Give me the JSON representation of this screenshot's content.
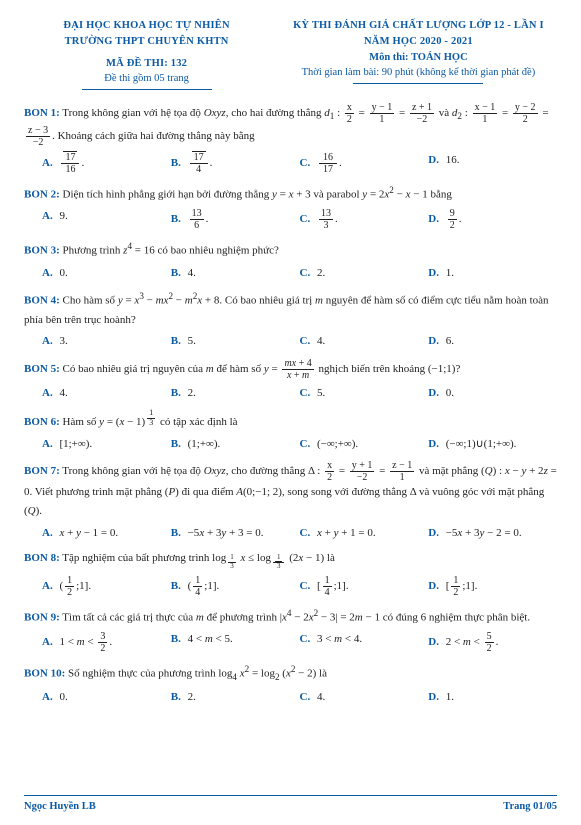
{
  "header": {
    "left_line1": "ĐẠI HỌC KHOA HỌC TỰ NHIÊN",
    "left_line2": "TRƯỜNG THPT CHUYÊN KHTN",
    "left_code": "MÃ ĐỀ THI: 132",
    "left_sub": "Đề thi gồm 05 trang",
    "right_line1": "KỲ THI ĐÁNH GIÁ CHẤT LƯỢNG LỚP 12 - LẦN I",
    "right_line2": "NĂM HỌC 2020 - 2021",
    "right_subject": "Môn thi: TOÁN HỌC",
    "right_time": "Thời gian làm bài: 90 phút (không kể thời gian phát đề)"
  },
  "questions": [
    {
      "label": "BON 1:",
      "text_before": " Trong không gian với hệ tọa độ ",
      "ital1": "Oxyz",
      "text_mid": ", cho hai đường thẳng ",
      "eq1_html": "<span class='ital'>d</span><sub>1</sub> : <span class='frac'><span class='num'>x</span><span class='den'>2</span></span> = <span class='frac'><span class='num'>y − 1</span><span class='den'>1</span></span> = <span class='frac'><span class='num'>z + 1</span><span class='den'>−2</span></span>",
      "text_after1": " và ",
      "eq2_html": "<span class='ital'>d</span><sub>2</sub> : <span class='frac'><span class='num'>x − 1</span><span class='den'>1</span></span> = <span class='frac'><span class='num'>y − 2</span><span class='den'>2</span></span> = <span class='frac'><span class='num'>z − 3</span><span class='den'>−2</span></span>",
      "text_after2": ". Khoảng cách giữa hai đường thẳng này bằng",
      "options": [
        "<span class='frac'><span class='num'><span class='sqrt'>17</span></span><span class='den'>16</span></span>.",
        "<span class='frac'><span class='num'><span class='sqrt'>17</span></span><span class='den'>4</span></span>.",
        "<span class='frac'><span class='num'>16</span><span class='den'><span class='sqrt'>17</span></span></span>.",
        "16."
      ]
    },
    {
      "label": "BON 2:",
      "text": " Diện tích hình phẳng giới hạn bởi đường thẳng <span class='ital'>y</span> = <span class='ital'>x</span> + 3 và parabol <span class='ital'>y</span> = 2<span class='ital'>x</span><sup>2</sup> − <span class='ital'>x</span> − 1 bằng",
      "options": [
        "9.",
        "<span class='frac'><span class='num'>13</span><span class='den'>6</span></span>.",
        "<span class='frac'><span class='num'>13</span><span class='den'>3</span></span>.",
        "<span class='frac'><span class='num'>9</span><span class='den'>2</span></span>."
      ]
    },
    {
      "label": "BON 3:",
      "text": " Phương trình <span class='ital'>z</span><sup>4</sup> = 16 có bao nhiêu nghiệm phức?",
      "options": [
        "0.",
        "4.",
        "2.",
        "1."
      ]
    },
    {
      "label": "BON 4:",
      "text": " Cho hàm số <span class='ital'>y</span> = <span class='ital'>x</span><sup>3</sup> − <span class='ital'>mx</span><sup>2</sup> − <span class='ital'>m</span><sup>2</sup><span class='ital'>x</span> + 8. Có bao nhiêu giá trị <span class='ital'>m</span> nguyên để hàm số có điểm cực tiểu nằm hoàn toàn phía bên trên trục hoành?",
      "options": [
        "3.",
        "5.",
        "4.",
        "6."
      ]
    },
    {
      "label": "BON 5:",
      "text": " Có bao nhiêu giá trị nguyên của <span class='ital'>m</span> để hàm số <span class='ital'>y</span> = <span class='frac'><span class='num'><span class='ital'>mx</span> + 4</span><span class='den'><span class='ital'>x</span> + <span class='ital'>m</span></span></span> nghịch biến trên khoảng (−1;1)?",
      "options": [
        "4.",
        "2.",
        "5.",
        "0."
      ]
    },
    {
      "label": "BON 6:",
      "text": " Hàm số <span class='ital'>y</span> = (<span class='ital'>x</span> − 1)<sup><span class='frac' style='font-size:8px;'><span class='num'>1</span><span class='den'>3</span></span></sup> có tập xác định là",
      "options": [
        "[1;+∞).",
        "(1;+∞).",
        "(−∞;+∞).",
        "(−∞;1)∪(1;+∞)."
      ]
    },
    {
      "label": "BON 7:",
      "text_before": " Trong không gian với hệ tọa độ ",
      "ital1": "Oxyz",
      "text_mid": ", cho đường thẳng Δ : ",
      "eq1_html": "<span class='frac'><span class='num'>x</span><span class='den'>2</span></span> = <span class='frac'><span class='num'>y + 1</span><span class='den'>−2</span></span> = <span class='frac'><span class='num'>z − 1</span><span class='den'>1</span></span>",
      "text_after1": " và mặt phẳng (<span class='ital'>Q</span>) : <span class='ital'>x</span> − <span class='ital'>y</span> + 2<span class='ital'>z</span> = 0. Viết phương trình mặt phẳng (<span class='ital'>P</span>) đi qua điểm <span class='ital'>A</span>(0;−1; 2), song song với đường thẳng Δ và vuông góc với mặt phẳng (<span class='ital'>Q</span>).",
      "options": [
        "<span class='ital'>x</span> + <span class='ital'>y</span> − 1 = 0.",
        "−5<span class='ital'>x</span> + 3<span class='ital'>y</span> + 3 = 0.",
        "<span class='ital'>x</span> + <span class='ital'>y</span> + 1 = 0.",
        "−5<span class='ital'>x</span> + 3<span class='ital'>y</span> − 2 = 0."
      ]
    },
    {
      "label": "BON 8:",
      "text": " Tập nghiệm của bất phương trình log<sub><span class='frac' style='font-size:7px;'><span class='num'>1</span><span class='den'>3</span></span></sub> <span class='ital'>x</span> ≤ log<sub><span class='frac' style='font-size:7px;'><span class='num'>1</span><span class='den'><span class='sqrt' style='font-size:7px;'>3</span></span></span></sub> (2<span class='ital'>x</span> − 1) là",
      "options": [
        "(<span class='frac'><span class='num'>1</span><span class='den'>2</span></span>;1].",
        "(<span class='frac'><span class='num'>1</span><span class='den'>4</span></span>;1].",
        "[<span class='frac'><span class='num'>1</span><span class='den'>4</span></span>;1].",
        "[<span class='frac'><span class='num'>1</span><span class='den'>2</span></span>;1]."
      ]
    },
    {
      "label": "BON 9:",
      "text": " Tìm tất cả các giá trị thực của <span class='ital'>m</span> để phương trình |<span class='ital'>x</span><sup>4</sup> − 2<span class='ital'>x</span><sup>2</sup> − 3| = 2<span class='ital'>m</span> − 1 có đúng 6 nghiệm thực phân biệt.",
      "options": [
        "1 &lt; <span class='ital'>m</span> &lt; <span class='frac'><span class='num'>3</span><span class='den'>2</span></span>.",
        "4 &lt; <span class='ital'>m</span> &lt; 5.",
        "3 &lt; <span class='ital'>m</span> &lt; 4.",
        "2 &lt; <span class='ital'>m</span> &lt; <span class='frac'><span class='num'>5</span><span class='den'>2</span></span>."
      ]
    },
    {
      "label": "BON 10:",
      "text": " Số nghiệm thực của phương trình log<sub>4</sub> <span class='ital'>x</span><sup>2</sup> = log<sub>2</sub> (<span class='ital'>x</span><sup>2</sup> − 2) là",
      "options": [
        "0.",
        "2.",
        "4.",
        "1."
      ]
    }
  ],
  "option_labels": [
    "A.",
    "B.",
    "C.",
    "D."
  ],
  "footer": {
    "left": "Ngọc Huyền LB",
    "right": "Trang 01/05"
  },
  "colors": {
    "blue": "#0b5aa5",
    "text": "#222222",
    "bg": "#ffffff"
  }
}
